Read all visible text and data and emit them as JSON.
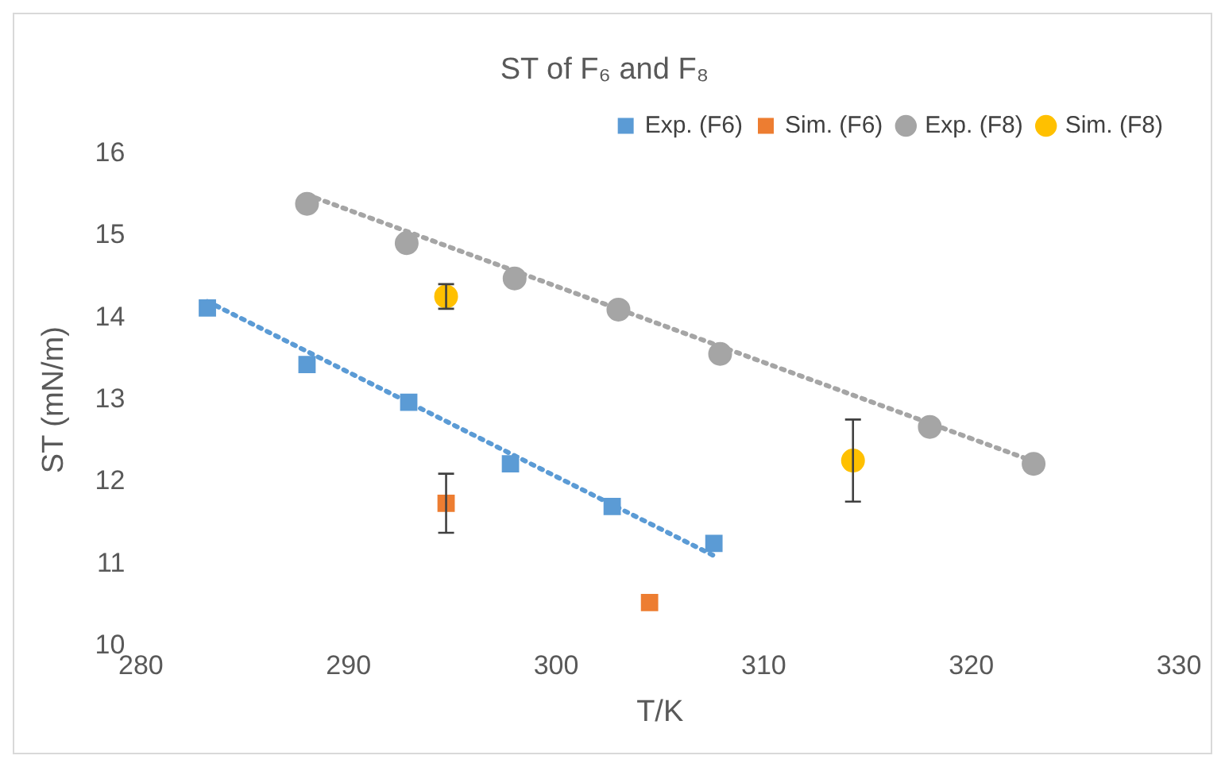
{
  "chart_data": {
    "type": "scatter",
    "title": "ST of F₆ and F₈",
    "xlabel": "T/K",
    "ylabel": "ST (mN/m)",
    "xlim": [
      280,
      330
    ],
    "xticks": [
      280,
      290,
      300,
      310,
      320,
      330
    ],
    "ylim": [
      10,
      16
    ],
    "yticks": [
      10,
      11,
      12,
      13,
      14,
      15,
      16
    ],
    "grid": false,
    "legend": "top right",
    "series": [
      {
        "name": "Exp. (F6)",
        "marker": "square",
        "color": "#5b9bd5",
        "x": [
          283.2,
          288,
          292.9,
          297.8,
          302.7,
          307.6
        ],
        "values": [
          14.12,
          13.43,
          12.97,
          12.22,
          11.7,
          11.25
        ]
      },
      {
        "name": "Sim. (F6)",
        "marker": "square",
        "color": "#ed7d31",
        "x": [
          294.7,
          304.5
        ],
        "values": [
          11.74,
          10.53
        ],
        "errors": [
          0.36,
          null
        ]
      },
      {
        "name": "Exp. (F8)",
        "marker": "circle",
        "color": "#a5a5a5",
        "x": [
          288,
          292.8,
          298,
          303,
          307.9,
          318,
          323
        ],
        "values": [
          15.39,
          14.91,
          14.48,
          14.1,
          13.56,
          12.67,
          12.22
        ]
      },
      {
        "name": "Sim. (F8)",
        "marker": "circle",
        "color": "#ffc000",
        "x": [
          294.7,
          314.3
        ],
        "values": [
          14.26,
          12.26
        ],
        "errors": [
          0.15,
          0.5
        ]
      },
      {
        "type": "line",
        "line_style": "dotted",
        "marker": "none",
        "color": "#5b9bd5",
        "x": [
          283.2,
          307.6
        ],
        "values": [
          14.2,
          11.1
        ]
      },
      {
        "type": "line",
        "line_style": "dotted",
        "marker": "none",
        "color": "#a5a5a5",
        "x": [
          288,
          323
        ],
        "values": [
          15.5,
          12.25
        ]
      }
    ]
  }
}
